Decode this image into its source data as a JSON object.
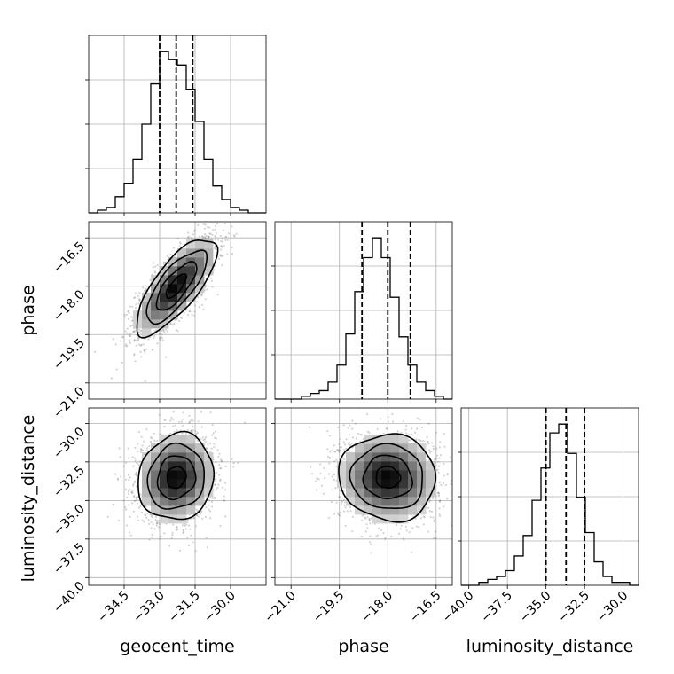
{
  "chart_data": {
    "type": "corner",
    "parameters": [
      {
        "name": "geocent_time",
        "label": "geocent_time",
        "range": [
          -36,
          -28.5
        ],
        "ticks": [
          -34.5,
          -33.0,
          -31.5,
          -30.0
        ],
        "tick_labels": [
          "−34.5",
          "−33.0",
          "−31.5",
          "−30.0"
        ],
        "quantiles": [
          -33.0,
          -32.3,
          -31.6
        ],
        "histogram": {
          "edges_start": -36.0,
          "bin_width": 0.375,
          "counts": [
            0,
            1,
            2,
            6,
            11,
            20,
            33,
            48,
            60,
            57,
            55,
            46,
            34,
            20,
            10,
            5,
            2,
            1,
            0,
            0
          ]
        }
      },
      {
        "name": "phase",
        "label": "phase",
        "range": [
          -21.5,
          -16
        ],
        "ticks": [
          -21.0,
          -19.5,
          -18.0,
          -16.5
        ],
        "tick_labels": [
          "−21.0",
          "−19.5",
          "−18.0",
          "−16.5"
        ],
        "quantiles": [
          -18.8,
          -18.0,
          -17.3
        ],
        "histogram": {
          "edges_start": -21.5,
          "bin_width": 0.275,
          "counts": [
            0,
            0,
            0,
            1,
            2,
            3,
            6,
            12,
            23,
            38,
            50,
            57,
            50,
            36,
            22,
            12,
            6,
            3,
            1,
            0
          ]
        }
      },
      {
        "name": "luminosity_distance",
        "label": "luminosity_distance",
        "range": [
          -40.5,
          -29
        ],
        "ticks": [
          -40.0,
          -37.5,
          -35.0,
          -32.5,
          -30.0
        ],
        "tick_labels": [
          "−40.0",
          "−37.5",
          "−35.0",
          "−32.5",
          "−30.0"
        ],
        "quantiles": [
          -35.0,
          -33.7,
          -32.5
        ],
        "histogram": {
          "edges_start": -40.5,
          "bin_width": 0.575,
          "counts": [
            0,
            0,
            1,
            2,
            3,
            5,
            10,
            17,
            29,
            40,
            52,
            55,
            45,
            30,
            18,
            8,
            3,
            1,
            1,
            0
          ]
        }
      }
    ],
    "pairs": [
      {
        "x": "geocent_time",
        "y": "phase",
        "mean": [
          -32.3,
          -18.0
        ],
        "sd": [
          0.85,
          0.75
        ],
        "rho": 0.75
      },
      {
        "x": "geocent_time",
        "y": "luminosity_distance",
        "mean": [
          -32.3,
          -33.5
        ],
        "sd": [
          0.8,
          1.4
        ],
        "rho": 0.1
      },
      {
        "x": "phase",
        "y": "luminosity_distance",
        "mean": [
          -18.0,
          -33.5
        ],
        "sd": [
          0.75,
          1.4
        ],
        "rho": -0.05
      }
    ],
    "contour_levels_sigma": [
      0.5,
      1.0,
      1.5,
      2.0
    ],
    "grid": true
  }
}
